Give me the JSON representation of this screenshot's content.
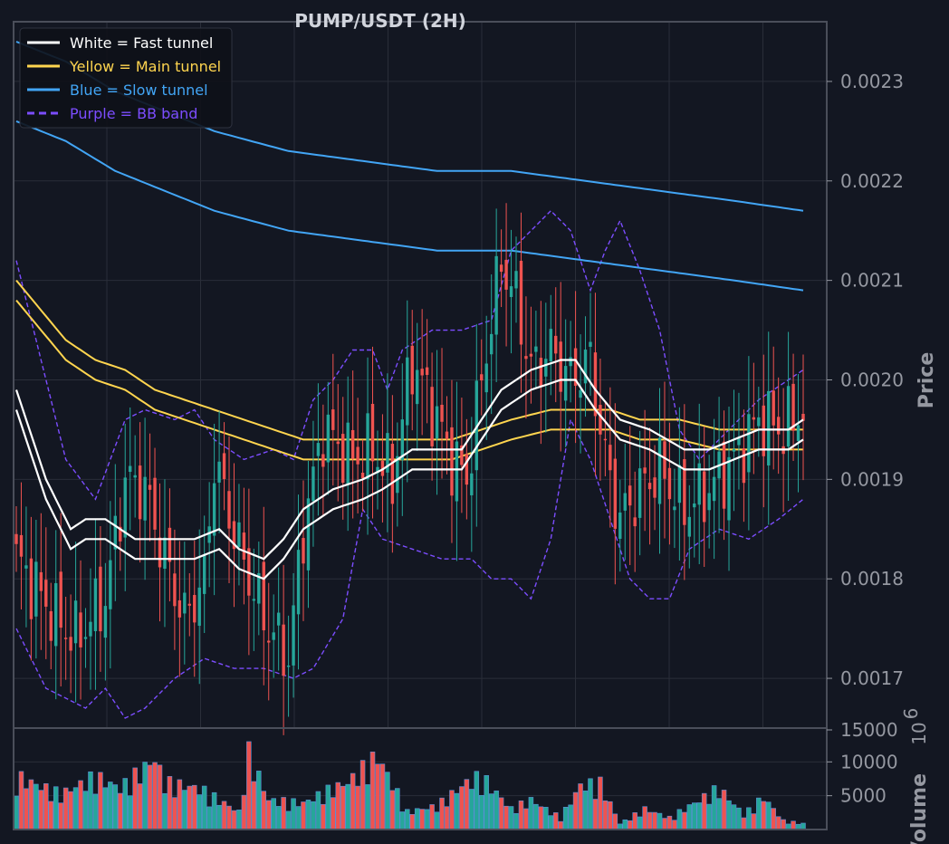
{
  "chart_data": [
    {
      "type": "candlestick",
      "title": "PUMP/USDT (2H)",
      "ylabel": "Price",
      "ylim": [
        0.00165,
        0.00236
      ],
      "yticks": [
        0.0017,
        0.0018,
        0.0019,
        0.002,
        0.0021,
        0.0022,
        0.0023
      ],
      "ytick_labels": [
        "0.0017",
        "0.0018",
        "0.0019",
        "0.0020",
        "0.0021",
        "0.0022",
        "0.0023"
      ],
      "grid": true,
      "legend_position": "top-left",
      "bar_count": 160,
      "colors": {
        "up": "#26a69a",
        "down": "#ef5350",
        "background": "#131722",
        "grid": "#2a2e39"
      },
      "legend": [
        {
          "label": "White = Fast tunnel",
          "color": "#ffffff",
          "style": "solid"
        },
        {
          "label": "Yellow = Main tunnel",
          "color": "#ffd54f",
          "style": "solid"
        },
        {
          "label": "Blue = Slow tunnel",
          "color": "#42a5f5",
          "style": "solid"
        },
        {
          "label": "Purple = BB band",
          "color": "#7c4dff",
          "style": "dashed"
        }
      ],
      "close_anchors": [
        [
          0,
          0.00182
        ],
        [
          8,
          0.00176
        ],
        [
          12,
          0.00174
        ],
        [
          18,
          0.00178
        ],
        [
          22,
          0.0019
        ],
        [
          26,
          0.00189
        ],
        [
          30,
          0.00182
        ],
        [
          34,
          0.00176
        ],
        [
          38,
          0.0018
        ],
        [
          40,
          0.00192
        ],
        [
          45,
          0.00183
        ],
        [
          50,
          0.00176
        ],
        [
          55,
          0.00172
        ],
        [
          58,
          0.00185
        ],
        [
          62,
          0.00195
        ],
        [
          68,
          0.00192
        ],
        [
          72,
          0.00193
        ],
        [
          76,
          0.0019
        ],
        [
          80,
          0.00202
        ],
        [
          85,
          0.00196
        ],
        [
          88,
          0.00192
        ],
        [
          91,
          0.0019
        ],
        [
          94,
          0.002
        ],
        [
          98,
          0.00212
        ],
        [
          101,
          0.00208
        ],
        [
          104,
          0.00201
        ],
        [
          108,
          0.00203
        ],
        [
          112,
          0.002
        ],
        [
          116,
          0.00202
        ],
        [
          119,
          0.00192
        ],
        [
          122,
          0.00186
        ],
        [
          126,
          0.00189
        ],
        [
          130,
          0.00191
        ],
        [
          135,
          0.00187
        ],
        [
          140,
          0.00189
        ],
        [
          145,
          0.00192
        ],
        [
          150,
          0.00196
        ],
        [
          155,
          0.00195
        ],
        [
          159,
          0.00197
        ]
      ],
      "fast_tunnel": [
        [
          0,
          0.00198
        ],
        [
          6,
          0.00189
        ],
        [
          11,
          0.00184
        ],
        [
          14,
          0.00185
        ],
        [
          18,
          0.00185
        ],
        [
          24,
          0.00183
        ],
        [
          30,
          0.00183
        ],
        [
          36,
          0.00183
        ],
        [
          41,
          0.00184
        ],
        [
          45,
          0.00182
        ],
        [
          50,
          0.00181
        ],
        [
          54,
          0.00183
        ],
        [
          58,
          0.00186
        ],
        [
          64,
          0.00188
        ],
        [
          70,
          0.00189
        ],
        [
          74,
          0.0019
        ],
        [
          80,
          0.00192
        ],
        [
          86,
          0.00192
        ],
        [
          90,
          0.00192
        ],
        [
          94,
          0.00195
        ],
        [
          98,
          0.00198
        ],
        [
          104,
          0.002
        ],
        [
          110,
          0.00201
        ],
        [
          113,
          0.00201
        ],
        [
          117,
          0.00198
        ],
        [
          122,
          0.00195
        ],
        [
          128,
          0.00194
        ],
        [
          135,
          0.00192
        ],
        [
          140,
          0.00192
        ],
        [
          145,
          0.00193
        ],
        [
          150,
          0.00194
        ],
        [
          156,
          0.00194
        ],
        [
          159,
          0.00195
        ]
      ],
      "fast_tunnel_width": 2e-05,
      "main_tunnel": [
        [
          0,
          0.00209
        ],
        [
          10,
          0.00203
        ],
        [
          16,
          0.00201
        ],
        [
          22,
          0.002
        ],
        [
          28,
          0.00198
        ],
        [
          34,
          0.00197
        ],
        [
          40,
          0.00196
        ],
        [
          46,
          0.00195
        ],
        [
          52,
          0.00194
        ],
        [
          58,
          0.00193
        ],
        [
          66,
          0.00193
        ],
        [
          74,
          0.00193
        ],
        [
          82,
          0.00193
        ],
        [
          88,
          0.00193
        ],
        [
          94,
          0.00194
        ],
        [
          100,
          0.00195
        ],
        [
          108,
          0.00196
        ],
        [
          114,
          0.00196
        ],
        [
          120,
          0.00196
        ],
        [
          126,
          0.00195
        ],
        [
          134,
          0.00195
        ],
        [
          142,
          0.00194
        ],
        [
          150,
          0.00194
        ],
        [
          159,
          0.00194
        ]
      ],
      "main_tunnel_width": 2e-05,
      "slow_tunnel": [
        [
          0,
          0.0023
        ],
        [
          10,
          0.00228
        ],
        [
          20,
          0.00225
        ],
        [
          30,
          0.00223
        ],
        [
          40,
          0.00221
        ],
        [
          55,
          0.00219
        ],
        [
          70,
          0.00218
        ],
        [
          85,
          0.00217
        ],
        [
          100,
          0.00217
        ],
        [
          115,
          0.00216
        ],
        [
          130,
          0.00215
        ],
        [
          145,
          0.00214
        ],
        [
          159,
          0.00213
        ]
      ],
      "slow_tunnel_width": 4e-05,
      "bb_upper": [
        [
          0,
          0.00212
        ],
        [
          6,
          0.002
        ],
        [
          10,
          0.00192
        ],
        [
          16,
          0.00188
        ],
        [
          22,
          0.00196
        ],
        [
          26,
          0.00197
        ],
        [
          32,
          0.00196
        ],
        [
          36,
          0.00197
        ],
        [
          40,
          0.00194
        ],
        [
          46,
          0.00192
        ],
        [
          52,
          0.00193
        ],
        [
          56,
          0.00192
        ],
        [
          60,
          0.00198
        ],
        [
          64,
          0.002
        ],
        [
          68,
          0.00203
        ],
        [
          72,
          0.00203
        ],
        [
          75,
          0.00199
        ],
        [
          78,
          0.00203
        ],
        [
          84,
          0.00205
        ],
        [
          90,
          0.00205
        ],
        [
          96,
          0.00206
        ],
        [
          100,
          0.00213
        ],
        [
          104,
          0.00215
        ],
        [
          108,
          0.00217
        ],
        [
          112,
          0.00215
        ],
        [
          116,
          0.00209
        ],
        [
          119,
          0.00213
        ],
        [
          122,
          0.00216
        ],
        [
          126,
          0.00211
        ],
        [
          130,
          0.00205
        ],
        [
          134,
          0.00195
        ],
        [
          138,
          0.00192
        ],
        [
          144,
          0.00195
        ],
        [
          150,
          0.00198
        ],
        [
          156,
          0.002
        ],
        [
          159,
          0.00201
        ]
      ],
      "bb_lower": [
        [
          0,
          0.00175
        ],
        [
          6,
          0.00169
        ],
        [
          10,
          0.00168
        ],
        [
          14,
          0.00167
        ],
        [
          18,
          0.00169
        ],
        [
          22,
          0.00166
        ],
        [
          26,
          0.00167
        ],
        [
          32,
          0.0017
        ],
        [
          38,
          0.00172
        ],
        [
          44,
          0.00171
        ],
        [
          50,
          0.00171
        ],
        [
          56,
          0.0017
        ],
        [
          60,
          0.00171
        ],
        [
          66,
          0.00176
        ],
        [
          70,
          0.00187
        ],
        [
          74,
          0.00184
        ],
        [
          80,
          0.00183
        ],
        [
          86,
          0.00182
        ],
        [
          92,
          0.00182
        ],
        [
          96,
          0.0018
        ],
        [
          100,
          0.0018
        ],
        [
          104,
          0.00178
        ],
        [
          108,
          0.00184
        ],
        [
          112,
          0.00196
        ],
        [
          116,
          0.00192
        ],
        [
          120,
          0.00186
        ],
        [
          124,
          0.0018
        ],
        [
          128,
          0.00178
        ],
        [
          132,
          0.00178
        ],
        [
          136,
          0.00183
        ],
        [
          142,
          0.00185
        ],
        [
          148,
          0.00184
        ],
        [
          154,
          0.00186
        ],
        [
          159,
          0.00188
        ]
      ]
    },
    {
      "type": "bar",
      "ylabel": "Volume",
      "exponent_label": "10",
      "exponent_power": "6",
      "ylim": [
        0,
        15000
      ],
      "yticks": [
        5000,
        10000,
        15000
      ],
      "ytick_labels": [
        "5000",
        "10000",
        "15000"
      ],
      "volume_peaks": [
        [
          0,
          9000
        ],
        [
          9,
          6000
        ],
        [
          16,
          9000
        ],
        [
          21,
          7000
        ],
        [
          28,
          12000
        ],
        [
          30,
          8000
        ],
        [
          37,
          7000
        ],
        [
          45,
          3000
        ],
        [
          47,
          13000
        ],
        [
          51,
          5000
        ],
        [
          58,
          4500
        ],
        [
          64,
          7000
        ],
        [
          67,
          8000
        ],
        [
          73,
          12500
        ],
        [
          79,
          3000
        ],
        [
          85,
          4000
        ],
        [
          91,
          8000
        ],
        [
          94,
          9000
        ],
        [
          100,
          3500
        ],
        [
          104,
          5000
        ],
        [
          110,
          2000
        ],
        [
          114,
          7500
        ],
        [
          118,
          7800
        ],
        [
          122,
          1000
        ],
        [
          127,
          3500
        ],
        [
          132,
          2000
        ],
        [
          138,
          5000
        ],
        [
          142,
          7000
        ],
        [
          147,
          2500
        ],
        [
          151,
          5500
        ],
        [
          155,
          1500
        ],
        [
          159,
          1000
        ]
      ]
    }
  ]
}
